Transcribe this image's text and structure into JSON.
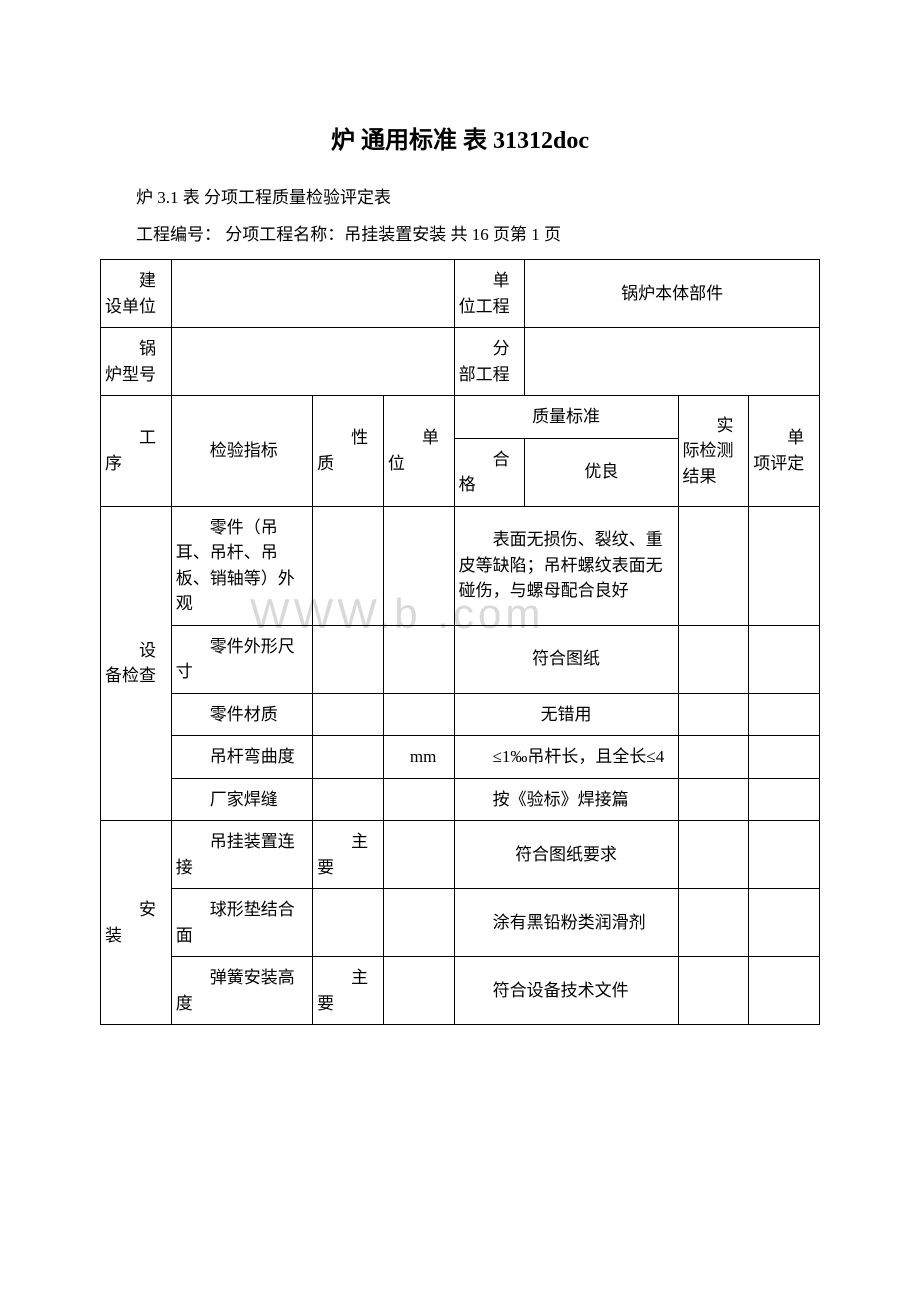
{
  "title": "炉 通用标准 表 31312doc",
  "subtitle": "炉 3.1 表 分项工程质量检验评定表",
  "meta": "工程编号：  分项工程名称：吊挂装置安装 共 16 页第 1 页",
  "watermark": "WWW.b      .com",
  "headers": {
    "jianshedanwei": "建设单位",
    "danweigongcheng": "单位工程",
    "guolubentibujian": "锅炉本体部件",
    "guoluxinghao": "锅炉型号",
    "fenbugongcheng": "分部工程",
    "gongxu": "工序",
    "jianyanzhibiao": "检验指标",
    "xingzhi": "性质",
    "danwei": "单位",
    "zhiliangbiaozhun": "质量标准",
    "hege": "合格",
    "youliang": "优良",
    "shijijianceresult": "实际检测结果",
    "danxiangpingding": "单项评定"
  },
  "rows": {
    "shebeijiancha": "设备检查",
    "anzhuang": "安装",
    "r1": {
      "indicator": "零件（吊耳、吊杆、吊板、销轴等）外观",
      "unit": "",
      "std": "表面无损伤、裂纹、重皮等缺陷；吊杆螺纹表面无碰伤，与螺母配合良好"
    },
    "r2": {
      "indicator": "零件外形尺寸",
      "std": "符合图纸"
    },
    "r3": {
      "indicator": "零件材质",
      "std": "无错用"
    },
    "r4": {
      "indicator": "吊杆弯曲度",
      "unit": "mm",
      "std": "≤1‰吊杆长，且全长≤4"
    },
    "r5": {
      "indicator": "厂家焊缝",
      "std": "按《验标》焊接篇"
    },
    "r6": {
      "indicator": "吊挂装置连接",
      "xingzhi": "主要",
      "std": "符合图纸要求"
    },
    "r7": {
      "indicator": "球形垫结合面",
      "std": "涂有黑铅粉类润滑剂"
    },
    "r8": {
      "indicator": "弹簧安装高度",
      "xingzhi": "主要",
      "std": "符合设备技术文件"
    }
  }
}
